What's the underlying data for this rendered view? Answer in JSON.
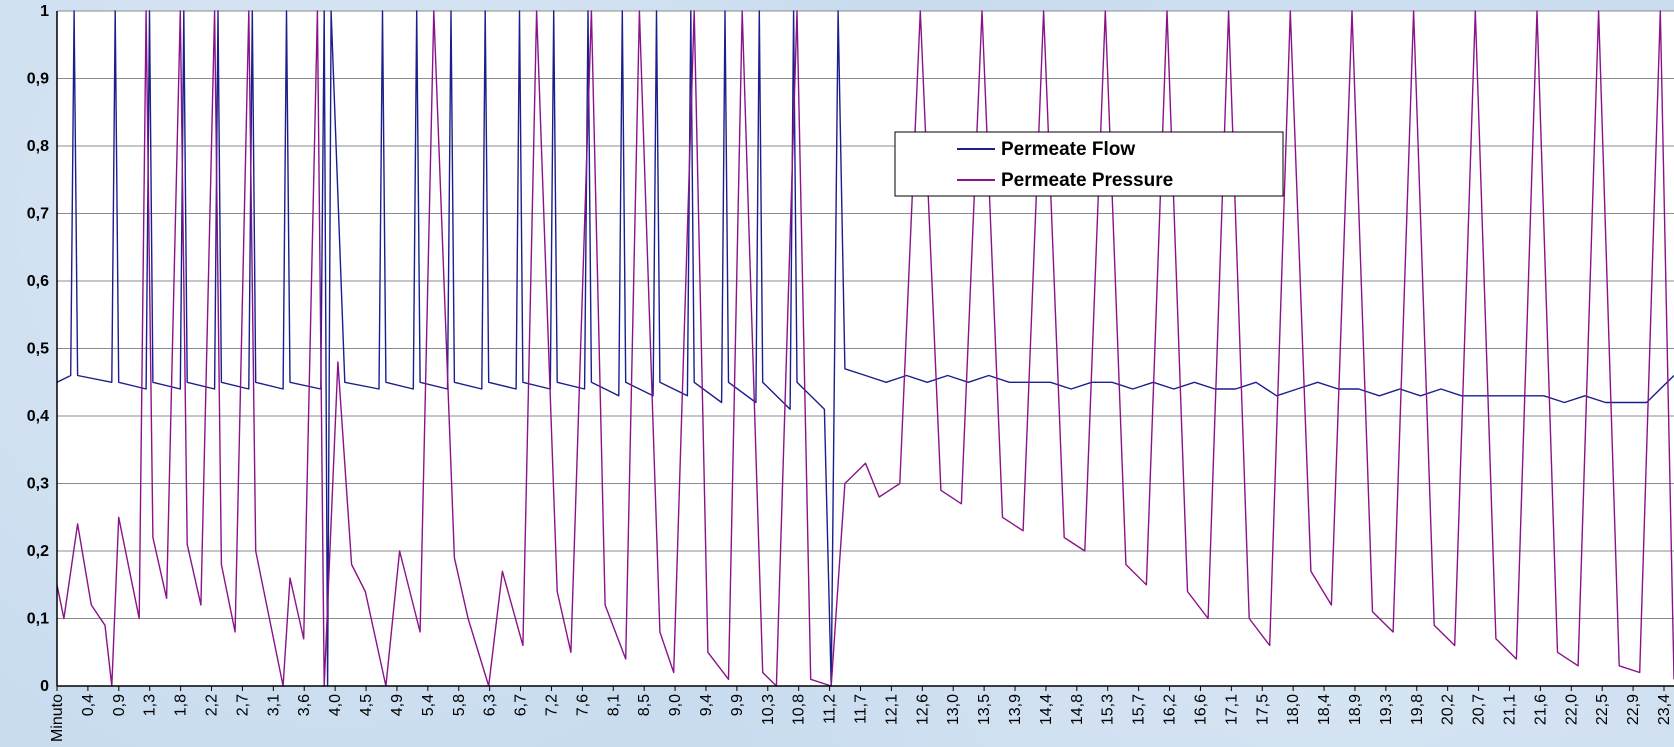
{
  "chart_data": {
    "type": "line",
    "xlabel": "",
    "ylabel": "",
    "ylim": [
      0,
      1
    ],
    "xlim": [
      0,
      23.6
    ],
    "grid": true,
    "legend_position": "top-center",
    "y_ticks": [
      "0",
      "0,1",
      "0,2",
      "0,3",
      "0,4",
      "0,5",
      "0,6",
      "0,7",
      "0,8",
      "0,9",
      "1"
    ],
    "x_tick_labels": [
      "Minuto",
      "0,4",
      "0,9",
      "1,3",
      "1,8",
      "2,2",
      "2,7",
      "3,1",
      "3,6",
      "4,0",
      "4,5",
      "4,9",
      "5,4",
      "5,8",
      "6,3",
      "6,7",
      "7,2",
      "7,6",
      "8,1",
      "8,5",
      "9,0",
      "9,4",
      "9,9",
      "10,3",
      "10,8",
      "11,2",
      "11,7",
      "12,1",
      "12,6",
      "13,0",
      "13,5",
      "13,9",
      "14,4",
      "14,8",
      "15,3",
      "15,7",
      "16,2",
      "16,6",
      "17,1",
      "17,5",
      "18,0",
      "18,4",
      "18,9",
      "19,3",
      "19,8",
      "20,2",
      "20,7",
      "21,1",
      "21,6",
      "22,0",
      "22,5",
      "22,9",
      "23,4"
    ],
    "series": [
      {
        "name": "Permeate Flow",
        "color": "#1a1f8c",
        "x": [
          0,
          0.2,
          0.25,
          0.3,
          0.8,
          0.85,
          0.9,
          1.3,
          1.35,
          1.4,
          1.8,
          1.85,
          1.9,
          2.3,
          2.35,
          2.4,
          2.8,
          2.85,
          2.9,
          3.3,
          3.35,
          3.4,
          3.85,
          3.9,
          3.95,
          4.0,
          4.2,
          4.7,
          4.75,
          4.8,
          5.2,
          5.25,
          5.3,
          5.7,
          5.75,
          5.8,
          6.2,
          6.25,
          6.3,
          6.7,
          6.75,
          6.8,
          7.2,
          7.25,
          7.3,
          7.7,
          7.75,
          7.8,
          8.2,
          8.25,
          8.3,
          8.7,
          8.75,
          8.8,
          9.2,
          9.25,
          9.3,
          9.7,
          9.75,
          9.8,
          10.2,
          10.25,
          10.3,
          10.7,
          10.75,
          10.8,
          11.2,
          11.3,
          11.4,
          11.5,
          11.8,
          12.1,
          12.4,
          12.7,
          13.0,
          13.3,
          13.6,
          13.9,
          14.2,
          14.5,
          14.8,
          15.1,
          15.4,
          15.7,
          16.0,
          16.3,
          16.6,
          16.9,
          17.2,
          17.5,
          17.8,
          18.1,
          18.4,
          18.7,
          19.0,
          19.3,
          19.6,
          19.9,
          20.2,
          20.5,
          20.8,
          21.1,
          21.4,
          21.7,
          22.0,
          22.3,
          22.6,
          22.9,
          23.2,
          23.6
        ],
        "values": [
          0.45,
          0.46,
          1.0,
          0.46,
          0.45,
          1.0,
          0.45,
          0.44,
          1.0,
          0.45,
          0.44,
          1.0,
          0.45,
          0.44,
          1.0,
          0.45,
          0.44,
          1.0,
          0.45,
          0.44,
          1.0,
          0.45,
          0.44,
          1.0,
          0.0,
          1.0,
          0.45,
          0.44,
          1.0,
          0.45,
          0.44,
          1.0,
          0.45,
          0.44,
          1.0,
          0.45,
          0.44,
          1.0,
          0.45,
          0.44,
          1.0,
          0.45,
          0.44,
          1.0,
          0.45,
          0.44,
          1.0,
          0.45,
          0.43,
          1.0,
          0.45,
          0.43,
          1.0,
          0.45,
          0.43,
          1.0,
          0.45,
          0.42,
          1.0,
          0.45,
          0.42,
          1.0,
          0.45,
          0.41,
          1.0,
          0.45,
          0.41,
          0.0,
          1.0,
          0.47,
          0.46,
          0.45,
          0.46,
          0.45,
          0.46,
          0.45,
          0.46,
          0.45,
          0.45,
          0.45,
          0.44,
          0.45,
          0.45,
          0.44,
          0.45,
          0.44,
          0.45,
          0.44,
          0.44,
          0.45,
          0.43,
          0.44,
          0.45,
          0.44,
          0.44,
          0.43,
          0.44,
          0.43,
          0.44,
          0.43,
          0.43,
          0.43,
          0.43,
          0.43,
          0.42,
          0.43,
          0.42,
          0.42,
          0.42,
          0.46
        ]
      },
      {
        "name": "Permeate Pressure",
        "color": "#8a138a",
        "x": [
          0,
          0.1,
          0.3,
          0.5,
          0.7,
          0.8,
          0.9,
          1.0,
          1.2,
          1.3,
          1.4,
          1.6,
          1.8,
          1.9,
          2.1,
          2.3,
          2.4,
          2.6,
          2.8,
          2.9,
          3.1,
          3.3,
          3.4,
          3.6,
          3.8,
          3.9,
          4.1,
          4.3,
          4.5,
          4.8,
          5.0,
          5.3,
          5.5,
          5.8,
          6.0,
          6.3,
          6.5,
          6.8,
          7.0,
          7.3,
          7.5,
          7.8,
          8.0,
          8.3,
          8.5,
          8.8,
          9.0,
          9.3,
          9.5,
          9.8,
          10.0,
          10.3,
          10.5,
          10.8,
          11.0,
          11.3,
          11.5,
          11.8,
          12.0,
          12.3,
          12.6,
          12.9,
          13.2,
          13.5,
          13.8,
          14.1,
          14.4,
          14.7,
          15.0,
          15.3,
          15.6,
          15.9,
          16.2,
          16.5,
          16.8,
          17.1,
          17.4,
          17.7,
          18.0,
          18.3,
          18.6,
          18.9,
          19.2,
          19.5,
          19.8,
          20.1,
          20.4,
          20.7,
          21.0,
          21.3,
          21.6,
          21.9,
          22.2,
          22.5,
          22.8,
          23.1,
          23.4,
          23.6
        ],
        "values": [
          0.15,
          0.1,
          0.24,
          0.12,
          0.09,
          0.0,
          0.25,
          0.2,
          0.1,
          1.0,
          0.22,
          0.13,
          1.0,
          0.21,
          0.12,
          1.0,
          0.18,
          0.08,
          1.0,
          0.2,
          0.1,
          0.0,
          0.16,
          0.07,
          1.0,
          0.0,
          0.48,
          0.18,
          0.14,
          0.0,
          0.2,
          0.08,
          1.0,
          0.19,
          0.1,
          0.0,
          0.17,
          0.06,
          1.0,
          0.14,
          0.05,
          1.0,
          0.12,
          0.04,
          1.0,
          0.08,
          0.02,
          1.0,
          0.05,
          0.01,
          1.0,
          0.02,
          0.0,
          1.0,
          0.01,
          0.0,
          0.3,
          0.33,
          0.28,
          0.3,
          1.0,
          0.29,
          0.27,
          1.0,
          0.25,
          0.23,
          1.0,
          0.22,
          0.2,
          1.0,
          0.18,
          0.15,
          1.0,
          0.14,
          0.1,
          1.0,
          0.1,
          0.06,
          1.0,
          0.17,
          0.12,
          1.0,
          0.11,
          0.08,
          1.0,
          0.09,
          0.06,
          1.0,
          0.07,
          0.04,
          1.0,
          0.05,
          0.03,
          1.0,
          0.03,
          0.02,
          1.0,
          0.01
        ]
      }
    ]
  }
}
